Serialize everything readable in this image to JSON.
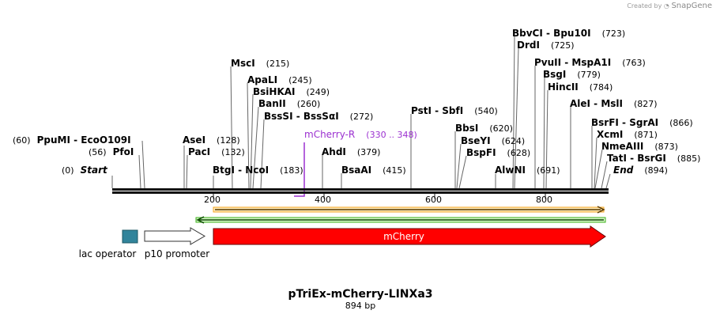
{
  "credit": {
    "prefix": "Created by",
    "brand": "SnapGene"
  },
  "title": "pTriEx-mCherry-LINXa3",
  "size_label": "894 bp",
  "axis_ticks": [
    "200",
    "400",
    "600",
    "800"
  ],
  "primer": {
    "name": "mCherry-R",
    "range": "(330 .. 348)"
  },
  "sites": {
    "start": {
      "name": "Start",
      "pos": "(0)"
    },
    "pfoi": {
      "name": "PfoI",
      "pos": "(56)"
    },
    "ppumi": {
      "name": "PpuMI - EcoO109I",
      "pos": "(60)"
    },
    "btgi": {
      "name": "BtgI - NcoI",
      "pos": "(183)"
    },
    "paci": {
      "name": "PacI",
      "pos": "(132)"
    },
    "asei": {
      "name": "AseI",
      "pos": "(128)"
    },
    "msci": {
      "name": "MscI",
      "pos": "(215)"
    },
    "apali": {
      "name": "ApaLI",
      "pos": "(245)"
    },
    "bsihkai": {
      "name": "BsiHKAI",
      "pos": "(249)"
    },
    "banii": {
      "name": "BanII",
      "pos": "(260)"
    },
    "bsssi": {
      "name": "BssSI - BssSαI",
      "pos": "(272)"
    },
    "ahdi": {
      "name": "AhdI",
      "pos": "(379)"
    },
    "bsaai": {
      "name": "BsaAI",
      "pos": "(415)"
    },
    "psti": {
      "name": "PstI - SbfI",
      "pos": "(540)"
    },
    "bbsi": {
      "name": "BbsI",
      "pos": "(620)"
    },
    "bseyi": {
      "name": "BseYI",
      "pos": "(624)"
    },
    "bspfi": {
      "name": "BspFI",
      "pos": "(628)"
    },
    "alwni": {
      "name": "AlwNI",
      "pos": "(691)"
    },
    "bbvci": {
      "name": "BbvCI - Bpu10I",
      "pos": "(723)"
    },
    "drdi": {
      "name": "DrdI",
      "pos": "(725)"
    },
    "pvuii": {
      "name": "PvuII - MspA1I",
      "pos": "(763)"
    },
    "bsgi": {
      "name": "BsgI",
      "pos": "(779)"
    },
    "hincii": {
      "name": "HincII",
      "pos": "(784)"
    },
    "alei": {
      "name": "AleI - MslI",
      "pos": "(827)"
    },
    "bsrfi": {
      "name": "BsrFI - SgrAI",
      "pos": "(866)"
    },
    "xcmi": {
      "name": "XcmI",
      "pos": "(871)"
    },
    "nmeaiii": {
      "name": "NmeAIII",
      "pos": "(873)"
    },
    "tati": {
      "name": "TatI - BsrGI",
      "pos": "(885)"
    },
    "end": {
      "name": "End",
      "pos": "(894)"
    }
  },
  "features": {
    "lac_operator": "lac operator",
    "p10_promoter": "p10 promoter",
    "mcherry": "mCherry"
  },
  "colors": {
    "mcherry": "#ff0000",
    "lac_operator": "#31849b",
    "primer": "#9b30d0",
    "orf_top": "#f5a623",
    "orf_bottom": "#3bb219"
  }
}
